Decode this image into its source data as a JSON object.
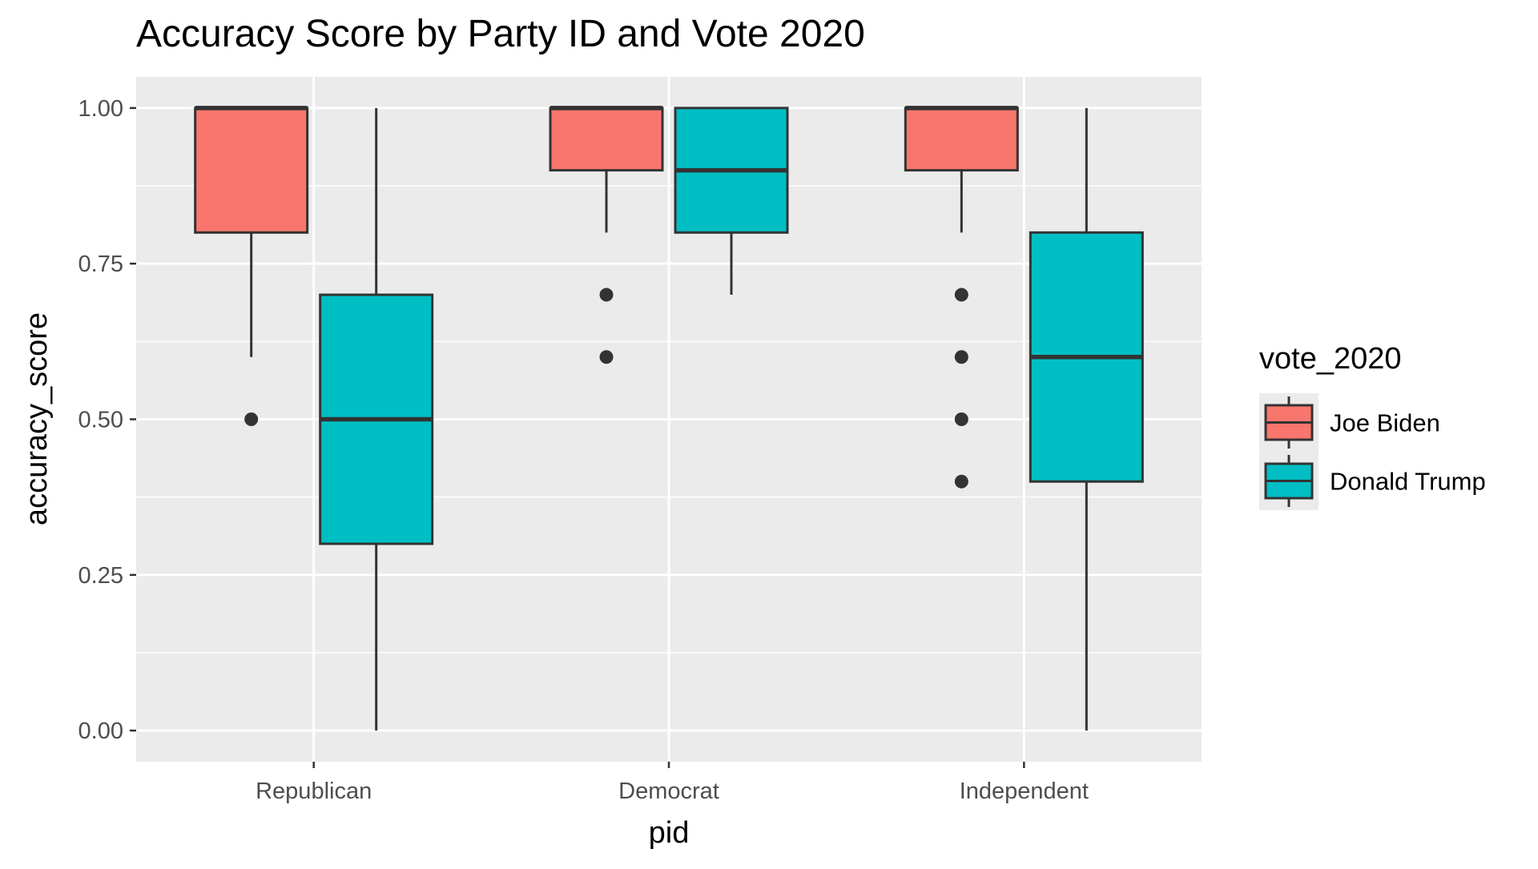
{
  "chart_data": {
    "type": "boxplot",
    "title": "Accuracy Score by Party ID and Vote 2020",
    "xlabel": "pid",
    "ylabel": "accuracy_score",
    "ylim": [
      -0.05,
      1.05
    ],
    "yticks": [
      0,
      0.25,
      0.5,
      0.75,
      1.0
    ],
    "ytick_labels": [
      "0.00",
      "0.25",
      "0.50",
      "0.75",
      "1.00"
    ],
    "categories": [
      "Republican",
      "Democrat",
      "Independent"
    ],
    "grid": true,
    "background": "#EBEBEB",
    "legend": {
      "title": "vote_2020",
      "placement": "right",
      "entries": [
        "Joe Biden",
        "Donald Trump"
      ]
    },
    "series": [
      {
        "name": "Joe Biden",
        "color": "#F8766D",
        "boxes": [
          {
            "category": "Republican",
            "whisker_low": 0.6,
            "q1": 0.8,
            "median": 1.0,
            "q3": 1.0,
            "whisker_high": 1.0,
            "outliers": [
              0.5
            ]
          },
          {
            "category": "Democrat",
            "whisker_low": 0.8,
            "q1": 0.9,
            "median": 1.0,
            "q3": 1.0,
            "whisker_high": 1.0,
            "outliers": [
              0.7,
              0.6
            ]
          },
          {
            "category": "Independent",
            "whisker_low": 0.8,
            "q1": 0.9,
            "median": 1.0,
            "q3": 1.0,
            "whisker_high": 1.0,
            "outliers": [
              0.7,
              0.6,
              0.5,
              0.4
            ]
          }
        ]
      },
      {
        "name": "Donald Trump",
        "color": "#00BFC4",
        "boxes": [
          {
            "category": "Republican",
            "whisker_low": 0.0,
            "q1": 0.3,
            "median": 0.5,
            "q3": 0.7,
            "whisker_high": 1.0,
            "outliers": []
          },
          {
            "category": "Democrat",
            "whisker_low": 0.7,
            "q1": 0.8,
            "median": 0.9,
            "q3": 1.0,
            "whisker_high": 1.0,
            "outliers": []
          },
          {
            "category": "Independent",
            "whisker_low": 0.0,
            "q1": 0.4,
            "median": 0.6,
            "q3": 0.8,
            "whisker_high": 1.0,
            "outliers": []
          }
        ]
      }
    ]
  }
}
